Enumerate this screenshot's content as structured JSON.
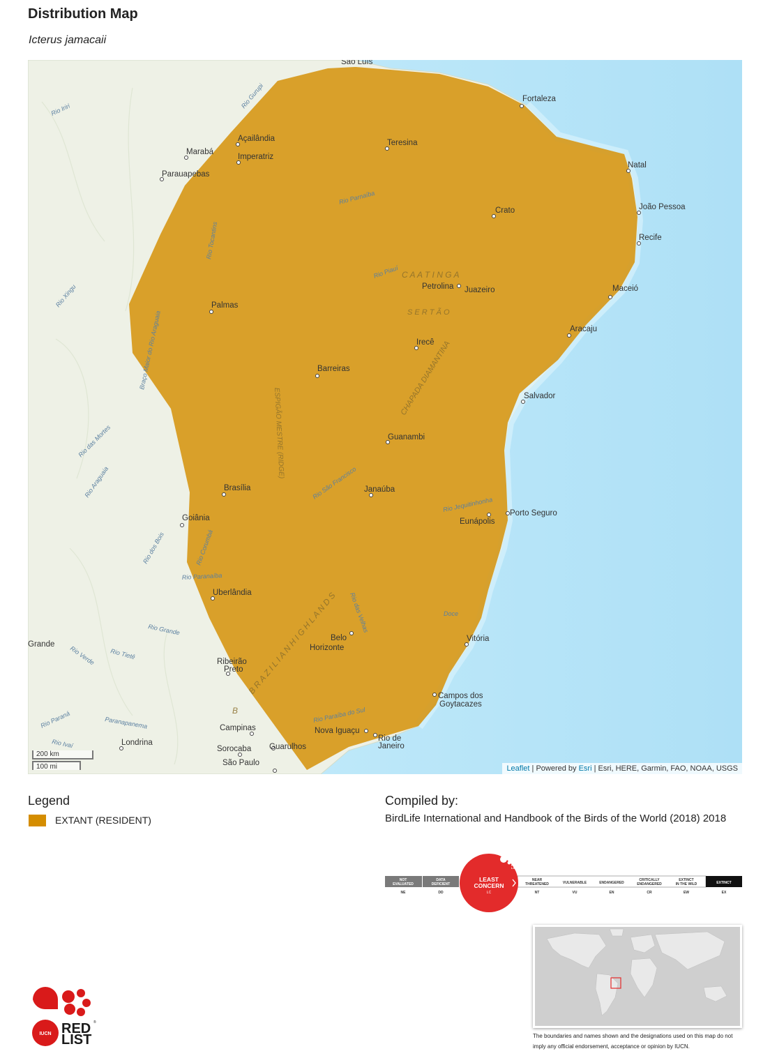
{
  "header": {
    "title": "Distribution Map",
    "species": "Icterus jamacaii"
  },
  "map": {
    "attribution_leaflet": "Leaflet",
    "attribution_powered": " | Powered by ",
    "attribution_esri": "Esri",
    "attribution_rest": " | Esri, HERE, Garmin, FAO, NOAA, USGS",
    "scale_km": "200 km",
    "scale_mi": "100 mi",
    "range_color": "#d48d00",
    "places": [
      "São Luís",
      "Fortaleza",
      "Teresina",
      "Açailândia",
      "Imperatriz",
      "Marabá",
      "Parauapebas",
      "Natal",
      "João Pessoa",
      "Crato",
      "Recife",
      "Petrolina",
      "Juazeiro",
      "Maceió",
      "Palmas",
      "Aracaju",
      "Irecê",
      "Barreiras",
      "Salvador",
      "Guanambi",
      "Brasília",
      "Janaúba",
      "Goiânia",
      "Porto Seguro",
      "Eunápolis",
      "Uberlândia",
      "Vitória",
      "Belo",
      "Horizonte",
      "Ribeirão",
      "Preto",
      "Campos dos",
      "Goytacazes",
      "Campinas",
      "Nova Iguaçu",
      "Rio de",
      "Janeiro",
      "Londrina",
      "Sorocaba",
      "Guarulhos",
      "São Paulo",
      "Grande"
    ],
    "features": [
      "C A A T I N G A",
      "S E R T Ã O",
      "CHAPADA DIAMANTINA",
      "ESPIGÃO MESTRE (RIDGE)",
      "B R A Z I L I A N   H I G H L A N D S",
      "B"
    ],
    "rivers": [
      "Rio Gurupi",
      "Rio Iriri",
      "Rio Parnaíba",
      "Rio Tocantins",
      "Rio Xingu",
      "Rio Piauí",
      "Braço Maior do Rio Araguaia",
      "Rio das Mortes",
      "Rio Araguaia",
      "Rio São Francisco",
      "Rio Jequitinhonha",
      "Rio dos Bois",
      "Rio Corumbá",
      "Rio Paranaíba",
      "Rio Grande",
      "Rio Verde",
      "Rio Tietê",
      "Rio Paraná",
      "Paranapanema",
      "Rio Ivaí",
      "Doce",
      "Rio das Velhas",
      "Rio Paraíba do Sul"
    ]
  },
  "legend": {
    "title": "Legend",
    "items": [
      {
        "label": "EXTANT (RESIDENT)",
        "color": "#d48d00"
      }
    ]
  },
  "compiled": {
    "title": "Compiled by:",
    "text": "BirdLife International and Handbook of the Birds of the World (2018) 2018"
  },
  "redlist_status": {
    "current": {
      "name_line1": "LEAST",
      "name_line2": "CONCERN",
      "code": "LC",
      "color": "#e32b2b"
    },
    "categories": [
      {
        "line1": "NOT",
        "line2": "EVALUATED",
        "code": "NE"
      },
      {
        "line1": "DATA",
        "line2": "DEFICIENT",
        "code": "DD"
      },
      {
        "line1": "NEAR",
        "line2": "THREATENED",
        "code": "NT"
      },
      {
        "line1": "",
        "line2": "VULNERABLE",
        "code": "VU"
      },
      {
        "line1": "",
        "line2": "ENDANGERED",
        "code": "EN"
      },
      {
        "line1": "CRITICALLY",
        "line2": "ENDANGERED",
        "code": "CR"
      },
      {
        "line1": "EXTINCT",
        "line2": "IN THE WILD",
        "code": "EW"
      },
      {
        "line1": "",
        "line2": "EXTINCT",
        "code": "EX"
      }
    ],
    "badge_text_1": "RED",
    "badge_text_2": "LIST"
  },
  "disclaimer": "The boundaries and names shown and the designations used on this map do not imply any official endorsement, acceptance or opinion by IUCN.",
  "logo": {
    "line1": "RED",
    "line2": "LIST",
    "badge": "IUCN",
    "mark": "®"
  }
}
